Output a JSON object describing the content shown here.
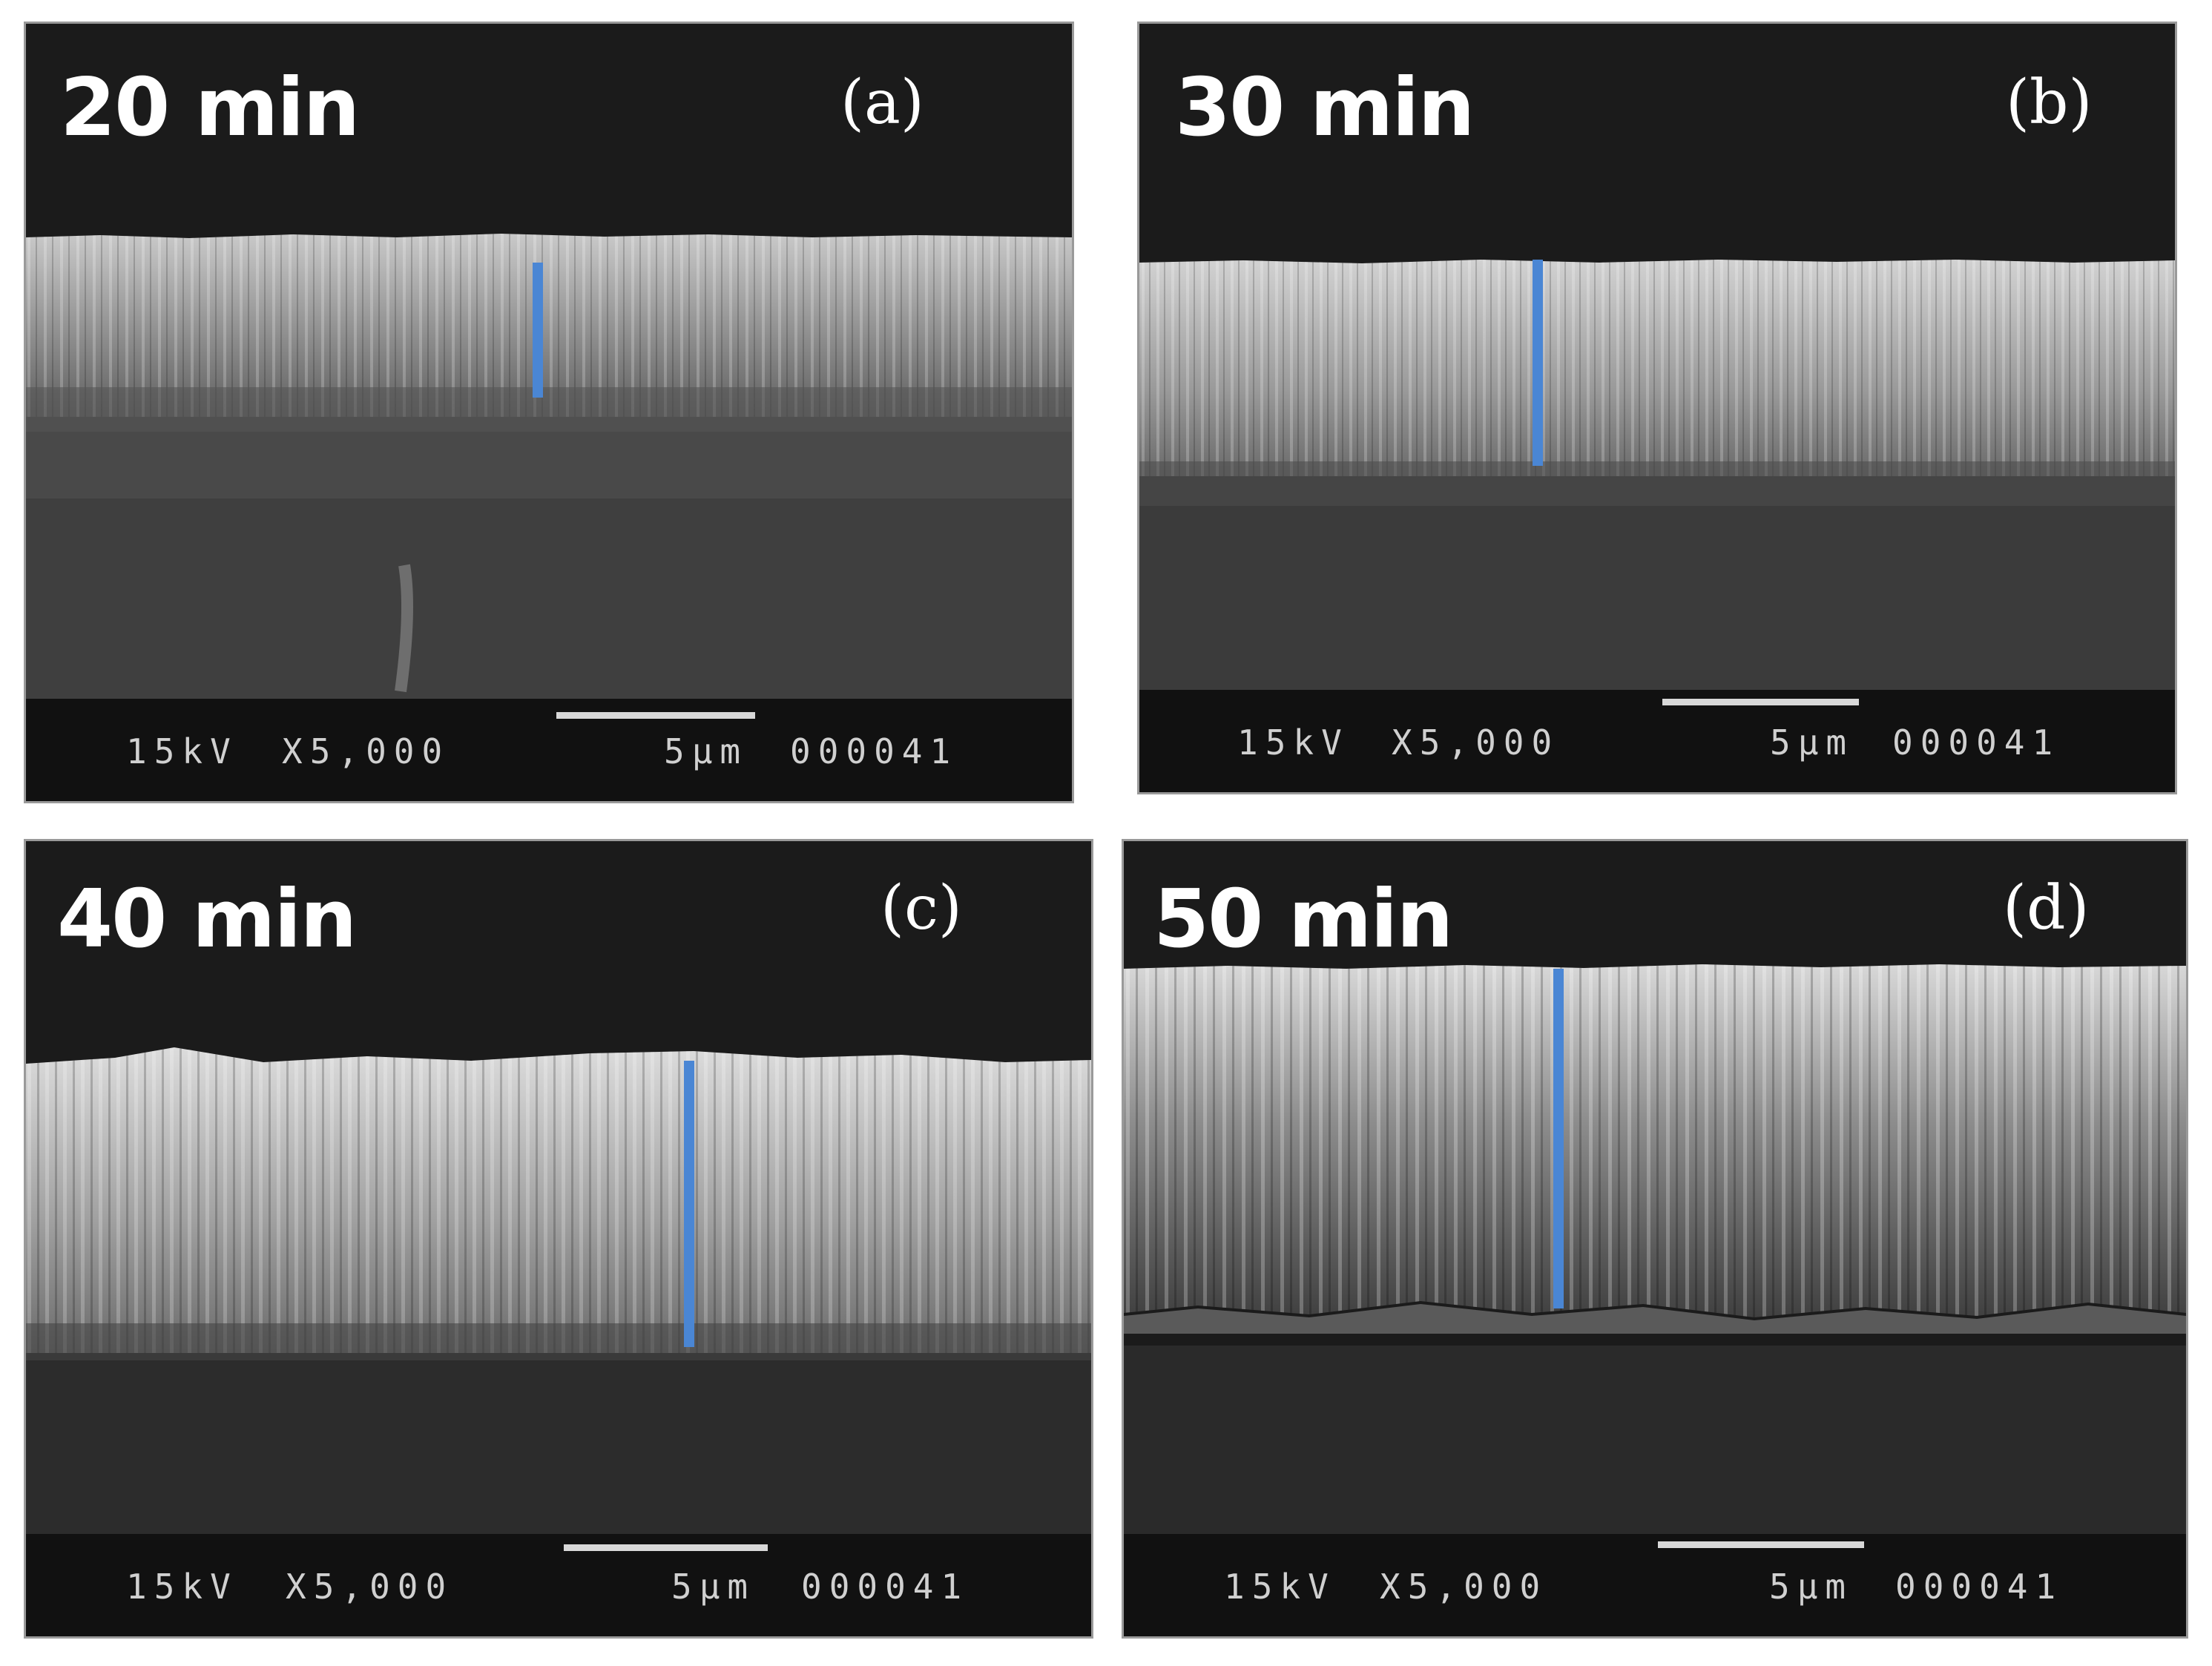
{
  "panels": [
    {
      "letter": "(a)",
      "time": "20 min",
      "voltage": "15kV",
      "magnification": "X5,000",
      "scale": "5µm",
      "image_no": "000041"
    },
    {
      "letter": "(b)",
      "time": "30 min",
      "voltage": "15kV",
      "magnification": "X5,000",
      "scale": "5µm",
      "image_no": "000041"
    },
    {
      "letter": "(c)",
      "time": "40 min",
      "voltage": "15kV",
      "magnification": "X5,000",
      "scale": "5µm",
      "image_no": "000041"
    },
    {
      "letter": "(d)",
      "time": "50 min",
      "voltage": "15kV",
      "magnification": "X5,000",
      "scale": "5µm",
      "image_no": "000041"
    }
  ],
  "colors": {
    "background": "#1b1b1b",
    "measurement_line": "#4a86d4",
    "label_text": "#ffffff"
  }
}
